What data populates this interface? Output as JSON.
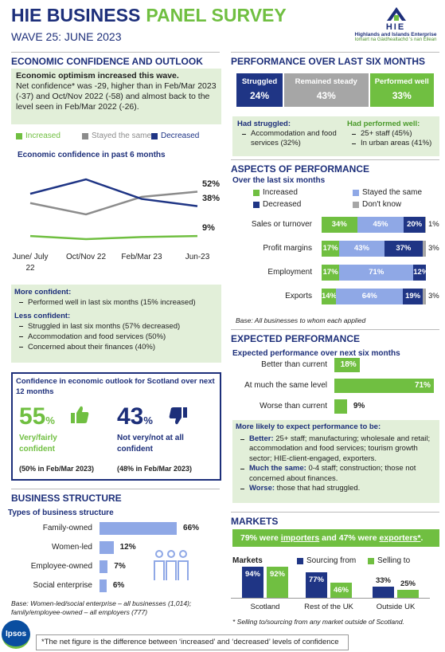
{
  "header": {
    "title_main": "HIE BUSINESS",
    "title_accent": "PANEL SURVEY",
    "subtitle": "WAVE 25: JUNE 2023",
    "logo_mark": "HIE",
    "logo_name": "Highlands and Islands Enterprise",
    "logo_gaelic": "Iomairt na Gàidhealtachd 's nan Eilean"
  },
  "confidence": {
    "heading": "ECONOMIC CONFIDENCE AND OUTLOOK",
    "summary_bold": "Economic optimism increased this wave.",
    "summary_text": "Net confidence* was -29, higher than in Feb/Mar 2023 (-37) and Oct/Nov 2022 (-58) and almost back to the level seen in Feb/Mar 2022 (-26).",
    "more_confident_heading": "More confident:",
    "more_confident": [
      "Performed well in last six months (15% increased)"
    ],
    "less_confident_heading": "Less confident:",
    "less_confident": [
      "Struggled in last six months (57% decreased)",
      "Accommodation and food services (50%)",
      "Concerned about their finances (40%)"
    ]
  },
  "outlook": {
    "title": "Confidence in economic outlook for Scotland over next 12 months",
    "positive": {
      "value": 55,
      "unit": "%",
      "label": "Very/fairly confident",
      "previous": "(50% in Feb/Mar 2023)"
    },
    "negative": {
      "value": 43,
      "unit": "%",
      "label": "Not very/not at all confident",
      "previous": "(48% in Feb/Mar 2023)"
    }
  },
  "structure": {
    "heading": "BUSINESS STRUCTURE",
    "base": "Base: Women-led/social enterprise – all businesses (1,014); family/employee-owned – all employers (777)"
  },
  "performance": {
    "heading": "PERFORMANCE OVER LAST SIX MONTHS",
    "struggled_heading": "Had struggled:",
    "struggled": [
      "Accommodation and food services (32%)"
    ],
    "performed_heading": "Had performed well:",
    "performed": [
      "25+ staff (45%)",
      "In urban areas (41%)"
    ]
  },
  "aspects": {
    "heading": "ASPECTS OF PERFORMANCE",
    "base": "Base: All businesses to whom each applied"
  },
  "expected": {
    "heading": "EXPECTED PERFORMANCE",
    "box_title": "More likely to expect performance to be:",
    "items": [
      {
        "term": "Better:",
        "text": "25+ staff; manufacturing; wholesale and retail; accommodation and food services; tourism growth sector; HIE-client-engaged, exporters."
      },
      {
        "term": "Much the same:",
        "text": "0-4 staff; construction; those not concerned about finances."
      },
      {
        "term": "Worse:",
        "text": "those that had struggled."
      }
    ]
  },
  "markets": {
    "heading": "MARKETS",
    "banner": [
      {
        "text": "79% were "
      },
      {
        "text": "importers",
        "underline": true
      },
      {
        "text": " and 47% were "
      },
      {
        "text": "exporters*",
        "underline": true
      },
      {
        "text": "."
      }
    ],
    "note": "* Selling to/sourcing from any market outside of Scotland."
  },
  "footer": {
    "brand": "Ipsos",
    "note": "*The net figure is the difference between ‘increased’ and ‘decreased’ levels of confidence"
  },
  "chart_data": [
    {
      "type": "line",
      "title": "Economic confidence in past 6 months",
      "categories": [
        "June/ July 22",
        "Oct/Nov 22",
        "Feb/Mar 23",
        "Jun-23"
      ],
      "series": [
        {
          "name": "Increased",
          "color": "#70bf41",
          "values": [
            9,
            6,
            8,
            9
          ],
          "value_labels": [
            null,
            null,
            null,
            "9%"
          ]
        },
        {
          "name": "Stayed the same",
          "color": "#8c8c8c",
          "values": [
            41,
            30,
            47,
            52
          ],
          "value_labels": [
            null,
            null,
            null,
            "52%"
          ]
        },
        {
          "name": "Decreased",
          "color": "#1f3585",
          "values": [
            50,
            64,
            45,
            38
          ],
          "value_labels": [
            null,
            null,
            null,
            "38%"
          ]
        }
      ]
    },
    {
      "type": "bar",
      "orientation": "horizontal",
      "title": "Types of business structure",
      "categories": [
        "Family-owned",
        "Women-led",
        "Employee-owned",
        "Social enterprise"
      ],
      "values": [
        66,
        12,
        7,
        6
      ],
      "value_labels": [
        "66%",
        "12%",
        "7%",
        "6%"
      ],
      "color": "#8fa8e6"
    },
    {
      "type": "stacked-bar",
      "orientation": "horizontal",
      "legend": "inside",
      "series": [
        {
          "name": "Struggled",
          "color": "#1f3585",
          "values": [
            24
          ],
          "value_labels": [
            "24%"
          ]
        },
        {
          "name": "Remained steady",
          "color": "#a6a6a6",
          "values": [
            43
          ],
          "value_labels": [
            "43%"
          ]
        },
        {
          "name": "Performed well",
          "color": "#70bf41",
          "values": [
            33
          ],
          "value_labels": [
            "33%"
          ]
        }
      ]
    },
    {
      "type": "stacked-bar",
      "orientation": "horizontal",
      "legend": "top",
      "title": "Over the last six months",
      "categories": [
        "Sales or turnover",
        "Profit margins",
        "Employment",
        "Exports"
      ],
      "series": [
        {
          "name": "Increased",
          "color": "#70bf41",
          "values": [
            34,
            17,
            17,
            14
          ],
          "value_labels": [
            "34%",
            "17%",
            "17%",
            "14%"
          ]
        },
        {
          "name": "Stayed the same",
          "color": "#8fa8e6",
          "values": [
            45,
            43,
            71,
            64
          ],
          "value_labels": [
            "45%",
            "43%",
            "71%",
            "64%"
          ]
        },
        {
          "name": "Decreased",
          "color": "#1f3585",
          "values": [
            20,
            37,
            12,
            19
          ],
          "value_labels": [
            "20%",
            "37%",
            "12%",
            "19%"
          ]
        },
        {
          "name": "Don't know",
          "color": "#a6a6a6",
          "values": [
            1,
            3,
            null,
            3
          ],
          "value_labels": [
            "1%",
            "3%",
            null,
            "3%"
          ]
        }
      ]
    },
    {
      "type": "bar",
      "orientation": "horizontal",
      "title": "Expected performance over next six months",
      "categories": [
        "Better than current",
        "At much the same level",
        "Worse than current"
      ],
      "values": [
        18,
        71,
        9
      ],
      "value_labels": [
        "18%",
        "71%",
        "9%"
      ],
      "color": "#70bf41"
    },
    {
      "type": "grouped-bar",
      "legend": "top",
      "title": "Markets",
      "categories": [
        "Scotland",
        "Rest of the UK",
        "Outside UK"
      ],
      "series": [
        {
          "name": "Sourcing from",
          "color": "#1f3585",
          "values": [
            94,
            77,
            33
          ],
          "value_labels": [
            "94%",
            "77%",
            "33%"
          ]
        },
        {
          "name": "Selling to",
          "color": "#70bf41",
          "values": [
            92,
            46,
            25
          ],
          "value_labels": [
            "92%",
            "46%",
            "25%"
          ]
        }
      ]
    }
  ]
}
